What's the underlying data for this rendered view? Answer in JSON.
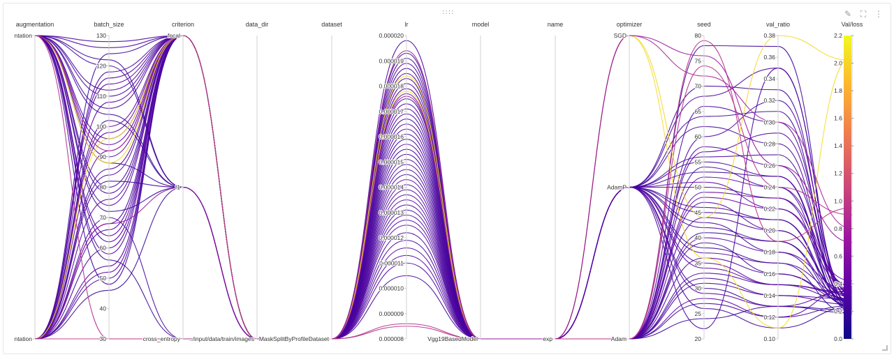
{
  "toolbar": {
    "edit_icon": "pencil-icon",
    "expand_icon": "fullscreen-icon",
    "menu_icon": "kebab-menu-icon"
  },
  "chart_data": {
    "type": "parallel-coordinates",
    "axes": [
      {
        "key": "augmentation",
        "label": "augmentation",
        "kind": "categorical",
        "ticks": [
          {
            "v": 1,
            "label": "ntation"
          },
          {
            "v": 0,
            "label": "ntation"
          }
        ]
      },
      {
        "key": "batch_size",
        "label": "batch_size",
        "kind": "numeric",
        "range": [
          30,
          130
        ],
        "ticks": [
          {
            "v": 130,
            "label": "130"
          },
          {
            "v": 120,
            "label": "120"
          },
          {
            "v": 110,
            "label": "110"
          },
          {
            "v": 100,
            "label": "100"
          },
          {
            "v": 90,
            "label": "90"
          },
          {
            "v": 80,
            "label": "80"
          },
          {
            "v": 70,
            "label": "70"
          },
          {
            "v": 60,
            "label": "60"
          },
          {
            "v": 50,
            "label": "50"
          },
          {
            "v": 40,
            "label": "40"
          },
          {
            "v": 30,
            "label": "30"
          }
        ]
      },
      {
        "key": "criterion",
        "label": "criterion",
        "kind": "categorical",
        "ticks": [
          {
            "v": 1,
            "label": "focal"
          },
          {
            "v": 0.5,
            "label": "f1"
          },
          {
            "v": 0,
            "label": "cross_entropy"
          }
        ]
      },
      {
        "key": "data_dir",
        "label": "data_dir",
        "kind": "categorical",
        "ticks": [
          {
            "v": 0,
            "label": "../input/data/train/images"
          }
        ]
      },
      {
        "key": "dataset",
        "label": "dataset",
        "kind": "categorical",
        "ticks": [
          {
            "v": 0,
            "label": "MaskSplitByProfileDataset"
          }
        ]
      },
      {
        "key": "lr",
        "label": "lr",
        "kind": "numeric",
        "range": [
          8e-06,
          2e-05
        ],
        "ticks": [
          {
            "v": 2e-05,
            "label": "0.000020"
          },
          {
            "v": 1.9e-05,
            "label": "0.000019"
          },
          {
            "v": 1.8e-05,
            "label": "0.000018"
          },
          {
            "v": 1.7e-05,
            "label": "0.000017"
          },
          {
            "v": 1.6e-05,
            "label": "0.000016"
          },
          {
            "v": 1.5e-05,
            "label": "0.000015"
          },
          {
            "v": 1.4e-05,
            "label": "0.000014"
          },
          {
            "v": 1.3e-05,
            "label": "0.000013"
          },
          {
            "v": 1.2e-05,
            "label": "0.000012"
          },
          {
            "v": 1.1e-05,
            "label": "0.000011"
          },
          {
            "v": 1e-05,
            "label": "0.000010"
          },
          {
            "v": 9e-06,
            "label": "0.000009"
          },
          {
            "v": 8e-06,
            "label": "0.000008"
          }
        ]
      },
      {
        "key": "model",
        "label": "model",
        "kind": "categorical",
        "ticks": [
          {
            "v": 0,
            "label": "Vgg19BasedModel"
          }
        ]
      },
      {
        "key": "name",
        "label": "name",
        "kind": "categorical",
        "ticks": [
          {
            "v": 0,
            "label": "exp"
          }
        ]
      },
      {
        "key": "optimizer",
        "label": "optimizer",
        "kind": "categorical",
        "ticks": [
          {
            "v": 1,
            "label": "SGD"
          },
          {
            "v": 0.5,
            "label": "AdamP"
          },
          {
            "v": 0,
            "label": "Adam"
          }
        ]
      },
      {
        "key": "seed",
        "label": "seed",
        "kind": "numeric",
        "range": [
          20,
          80
        ],
        "ticks": [
          {
            "v": 80,
            "label": "80"
          },
          {
            "v": 75,
            "label": "75"
          },
          {
            "v": 70,
            "label": "70"
          },
          {
            "v": 65,
            "label": "65"
          },
          {
            "v": 60,
            "label": "60"
          },
          {
            "v": 55,
            "label": "55"
          },
          {
            "v": 50,
            "label": "50"
          },
          {
            "v": 45,
            "label": "45"
          },
          {
            "v": 40,
            "label": "40"
          },
          {
            "v": 35,
            "label": "35"
          },
          {
            "v": 30,
            "label": "30"
          },
          {
            "v": 25,
            "label": "25"
          },
          {
            "v": 20,
            "label": "20"
          }
        ]
      },
      {
        "key": "val_ratio",
        "label": "val_ratio",
        "kind": "numeric",
        "range": [
          0.1,
          0.38
        ],
        "ticks": [
          {
            "v": 0.38,
            "label": "0.38"
          },
          {
            "v": 0.36,
            "label": "0.36"
          },
          {
            "v": 0.34,
            "label": "0.34"
          },
          {
            "v": 0.32,
            "label": "0.32"
          },
          {
            "v": 0.3,
            "label": "0.30"
          },
          {
            "v": 0.28,
            "label": "0.28"
          },
          {
            "v": 0.26,
            "label": "0.26"
          },
          {
            "v": 0.24,
            "label": "0.24"
          },
          {
            "v": 0.22,
            "label": "0.22"
          },
          {
            "v": 0.2,
            "label": "0.20"
          },
          {
            "v": 0.18,
            "label": "0.18"
          },
          {
            "v": 0.16,
            "label": "0.16"
          },
          {
            "v": 0.14,
            "label": "0.14"
          },
          {
            "v": 0.12,
            "label": "0.12"
          },
          {
            "v": 0.1,
            "label": "0.10"
          }
        ]
      },
      {
        "key": "val_loss",
        "label": "Val/loss",
        "kind": "numeric",
        "range": [
          0,
          2.2
        ],
        "ticks": [
          {
            "v": 2.2,
            "label": "2.2"
          },
          {
            "v": 2.0,
            "label": "2.0"
          },
          {
            "v": 1.8,
            "label": "1.8"
          },
          {
            "v": 1.6,
            "label": "1.6"
          },
          {
            "v": 1.4,
            "label": "1.4"
          },
          {
            "v": 1.2,
            "label": "1.2"
          },
          {
            "v": 1.0,
            "label": "1.0"
          },
          {
            "v": 0.8,
            "label": "0.8"
          },
          {
            "v": 0.6,
            "label": "0.6"
          },
          {
            "v": 0.4,
            "label": "0.4"
          },
          {
            "v": 0.2,
            "label": "0.2"
          },
          {
            "v": 0.0,
            "label": "0.0"
          }
        ]
      }
    ],
    "colorbar": {
      "range": [
        0,
        2.2
      ],
      "colors": [
        "#0d0887",
        "#5c01a6",
        "#9c179e",
        "#cc4778",
        "#ed7953",
        "#fdb42f",
        "#f0f921"
      ],
      "ticks": [
        {
          "v": 2.2,
          "label": "2.2"
        },
        {
          "v": 2.0,
          "label": "2.0"
        },
        {
          "v": 1.8,
          "label": "1.8"
        },
        {
          "v": 1.6,
          "label": "1.6"
        },
        {
          "v": 1.4,
          "label": "1.4"
        },
        {
          "v": 1.2,
          "label": "1.2"
        },
        {
          "v": 1.0,
          "label": "1.0"
        },
        {
          "v": 0.8,
          "label": "0.8"
        },
        {
          "v": 0.6,
          "label": "0.6"
        },
        {
          "v": 0.4,
          "label": "0.4"
        },
        {
          "v": 0.2,
          "label": "0.2"
        },
        {
          "v": 0.0,
          "label": "0.0"
        }
      ]
    },
    "runs": [
      {
        "augmentation": 1,
        "batch_size": 128,
        "criterion": 1,
        "lr": 1.98e-05,
        "optimizer": 0.5,
        "seed": 22,
        "val_ratio": 0.35,
        "val_loss": 0.28
      },
      {
        "augmentation": 0,
        "batch_size": 124,
        "criterion": 1,
        "lr": 1.93e-05,
        "optimizer": 0,
        "seed": 78,
        "val_ratio": 0.37,
        "val_loss": 0.22
      },
      {
        "augmentation": 1,
        "batch_size": 120,
        "criterion": 0.5,
        "lr": 1.91e-05,
        "optimizer": 0.5,
        "seed": 70,
        "val_ratio": 0.33,
        "val_loss": 0.24
      },
      {
        "augmentation": 0,
        "batch_size": 116,
        "criterion": 1,
        "lr": 1.89e-05,
        "optimizer": 0,
        "seed": 66,
        "val_ratio": 0.3,
        "val_loss": 0.3
      },
      {
        "augmentation": 1,
        "batch_size": 112,
        "criterion": 1,
        "lr": 1.87e-05,
        "optimizer": 0.5,
        "seed": 62,
        "val_ratio": 0.28,
        "val_loss": 0.26
      },
      {
        "augmentation": 0,
        "batch_size": 108,
        "criterion": 1,
        "lr": 1.85e-05,
        "optimizer": 0,
        "seed": 58,
        "val_ratio": 0.26,
        "val_loss": 0.34
      },
      {
        "augmentation": 1,
        "batch_size": 104,
        "criterion": 0.5,
        "lr": 1.83e-05,
        "optimizer": 0.5,
        "seed": 55,
        "val_ratio": 0.25,
        "val_loss": 0.2
      },
      {
        "augmentation": 0,
        "batch_size": 100,
        "criterion": 1,
        "lr": 1.81e-05,
        "optimizer": 0,
        "seed": 52,
        "val_ratio": 0.24,
        "val_loss": 0.38
      },
      {
        "augmentation": 1,
        "batch_size": 96,
        "criterion": 1,
        "lr": 1.79e-05,
        "optimizer": 0.5,
        "seed": 50,
        "val_ratio": 0.23,
        "val_loss": 0.24
      },
      {
        "augmentation": 0,
        "batch_size": 92,
        "criterion": 1,
        "lr": 1.77e-05,
        "optimizer": 0,
        "seed": 48,
        "val_ratio": 0.22,
        "val_loss": 0.42
      },
      {
        "augmentation": 1,
        "batch_size": 88,
        "criterion": 0.5,
        "lr": 1.75e-05,
        "optimizer": 0.5,
        "seed": 46,
        "val_ratio": 0.21,
        "val_loss": 0.22
      },
      {
        "augmentation": 0,
        "batch_size": 84,
        "criterion": 1,
        "lr": 1.73e-05,
        "optimizer": 0,
        "seed": 44,
        "val_ratio": 0.2,
        "val_loss": 0.31
      },
      {
        "augmentation": 1,
        "batch_size": 80,
        "criterion": 1,
        "lr": 1.71e-05,
        "optimizer": 0.5,
        "seed": 42,
        "val_ratio": 0.19,
        "val_loss": 0.27
      },
      {
        "augmentation": 0,
        "batch_size": 76,
        "criterion": 1,
        "lr": 1.69e-05,
        "optimizer": 0,
        "seed": 40,
        "val_ratio": 0.18,
        "val_loss": 0.35
      },
      {
        "augmentation": 1,
        "batch_size": 72,
        "criterion": 0.5,
        "lr": 1.67e-05,
        "optimizer": 0.5,
        "seed": 38,
        "val_ratio": 0.17,
        "val_loss": 0.18
      },
      {
        "augmentation": 0,
        "batch_size": 68,
        "criterion": 1,
        "lr": 1.65e-05,
        "optimizer": 0,
        "seed": 36,
        "val_ratio": 0.16,
        "val_loss": 0.29
      },
      {
        "augmentation": 1,
        "batch_size": 64,
        "criterion": 1,
        "lr": 1.63e-05,
        "optimizer": 0.5,
        "seed": 34,
        "val_ratio": 0.15,
        "val_loss": 0.33
      },
      {
        "augmentation": 0,
        "batch_size": 60,
        "criterion": 1,
        "lr": 1.61e-05,
        "optimizer": 0,
        "seed": 32,
        "val_ratio": 0.14,
        "val_loss": 0.25
      },
      {
        "augmentation": 1,
        "batch_size": 56,
        "criterion": 0,
        "lr": 1.59e-05,
        "optimizer": 0.5,
        "seed": 30,
        "val_ratio": 0.13,
        "val_loss": 0.21
      },
      {
        "augmentation": 0,
        "batch_size": 52,
        "criterion": 1,
        "lr": 1.57e-05,
        "optimizer": 0,
        "seed": 28,
        "val_ratio": 0.12,
        "val_loss": 0.37
      },
      {
        "augmentation": 1,
        "batch_size": 48,
        "criterion": 1,
        "lr": 1.55e-05,
        "optimizer": 0.5,
        "seed": 26,
        "val_ratio": 0.11,
        "val_loss": 0.23
      },
      {
        "augmentation": 0,
        "batch_size": 46,
        "criterion": 0.5,
        "lr": 1.53e-05,
        "optimizer": 0,
        "seed": 24,
        "val_ratio": 0.13,
        "val_loss": 0.19
      },
      {
        "augmentation": 1,
        "batch_size": 126,
        "criterion": 1,
        "lr": 1.51e-05,
        "optimizer": 0.5,
        "seed": 68,
        "val_ratio": 0.35,
        "val_loss": 0.28
      },
      {
        "augmentation": 0,
        "batch_size": 118,
        "criterion": 1,
        "lr": 1.49e-05,
        "optimizer": 0,
        "seed": 60,
        "val_ratio": 0.32,
        "val_loss": 0.32
      },
      {
        "augmentation": 1,
        "batch_size": 110,
        "criterion": 1,
        "lr": 1.47e-05,
        "optimizer": 0.5,
        "seed": 56,
        "val_ratio": 0.27,
        "val_loss": 0.26
      },
      {
        "augmentation": 0,
        "batch_size": 102,
        "criterion": 0.5,
        "lr": 1.45e-05,
        "optimizer": 0,
        "seed": 54,
        "val_ratio": 0.24,
        "val_loss": 0.22
      },
      {
        "augmentation": 1,
        "batch_size": 94,
        "criterion": 1,
        "lr": 1.43e-05,
        "optimizer": 0.5,
        "seed": 51,
        "val_ratio": 0.22,
        "val_loss": 0.36
      },
      {
        "augmentation": 0,
        "batch_size": 86,
        "criterion": 1,
        "lr": 1.41e-05,
        "optimizer": 0,
        "seed": 47,
        "val_ratio": 0.2,
        "val_loss": 0.3
      },
      {
        "augmentation": 1,
        "batch_size": 78,
        "criterion": 1,
        "lr": 1.39e-05,
        "optimizer": 0.5,
        "seed": 43,
        "val_ratio": 0.18,
        "val_loss": 0.24
      },
      {
        "augmentation": 0,
        "batch_size": 70,
        "criterion": 0,
        "lr": 1.37e-05,
        "optimizer": 0,
        "seed": 39,
        "val_ratio": 0.16,
        "val_loss": 0.27
      },
      {
        "augmentation": 1,
        "batch_size": 62,
        "criterion": 1,
        "lr": 1.35e-05,
        "optimizer": 0.5,
        "seed": 35,
        "val_ratio": 0.15,
        "val_loss": 0.34
      },
      {
        "augmentation": 0,
        "batch_size": 54,
        "criterion": 1,
        "lr": 1.33e-05,
        "optimizer": 0,
        "seed": 31,
        "val_ratio": 0.14,
        "val_loss": 0.29
      },
      {
        "augmentation": 1,
        "batch_size": 122,
        "criterion": 0.5,
        "lr": 1.31e-05,
        "optimizer": 0.5,
        "seed": 64,
        "val_ratio": 0.31,
        "val_loss": 0.21
      },
      {
        "augmentation": 0,
        "batch_size": 114,
        "criterion": 1,
        "lr": 1.29e-05,
        "optimizer": 0,
        "seed": 57,
        "val_ratio": 0.29,
        "val_loss": 0.33
      },
      {
        "augmentation": 1,
        "batch_size": 106,
        "criterion": 1,
        "lr": 1.27e-05,
        "optimizer": 0.5,
        "seed": 53,
        "val_ratio": 0.25,
        "val_loss": 0.25
      },
      {
        "augmentation": 0,
        "batch_size": 98,
        "criterion": 1,
        "lr": 1.25e-05,
        "optimizer": 0,
        "seed": 49,
        "val_ratio": 0.23,
        "val_loss": 0.38
      },
      {
        "augmentation": 1,
        "batch_size": 90,
        "criterion": 1,
        "lr": 1.22e-05,
        "optimizer": 0.5,
        "seed": 45,
        "val_ratio": 0.21,
        "val_loss": 0.26
      },
      {
        "augmentation": 0,
        "batch_size": 82,
        "criterion": 0.5,
        "lr": 1.19e-05,
        "optimizer": 0,
        "seed": 41,
        "val_ratio": 0.19,
        "val_loss": 0.23
      },
      {
        "augmentation": 1,
        "batch_size": 74,
        "criterion": 1,
        "lr": 1.16e-05,
        "optimizer": 0.5,
        "seed": 37,
        "val_ratio": 0.17,
        "val_loss": 0.31
      },
      {
        "augmentation": 0,
        "batch_size": 66,
        "criterion": 1,
        "lr": 1.13e-05,
        "optimizer": 0,
        "seed": 33,
        "val_ratio": 0.15,
        "val_loss": 0.28
      },
      {
        "augmentation": 1,
        "batch_size": 58,
        "criterion": 1,
        "lr": 1.1e-05,
        "optimizer": 0.5,
        "seed": 29,
        "val_ratio": 0.13,
        "val_loss": 0.35
      },
      {
        "augmentation": 0,
        "batch_size": 50,
        "criterion": 1,
        "lr": 1.05e-05,
        "optimizer": 0,
        "seed": 27,
        "val_ratio": 0.12,
        "val_loss": 0.24
      },
      {
        "augmentation": 1,
        "batch_size": 30,
        "criterion": 0,
        "lr": 8.6e-06,
        "optimizer": 0,
        "seed": 74,
        "val_ratio": 0.24,
        "val_loss": 0.9
      },
      {
        "augmentation": 0,
        "batch_size": 30,
        "criterion": 0,
        "lr": 8.5e-06,
        "optimizer": 0,
        "seed": 79,
        "val_ratio": 0.19,
        "val_loss": 0.95
      },
      {
        "augmentation": 0,
        "batch_size": 96,
        "criterion": 1,
        "lr": 1.84e-05,
        "optimizer": 1,
        "seed": 36,
        "val_ratio": 0.11,
        "val_loss": 2.05
      },
      {
        "augmentation": 1,
        "batch_size": 88,
        "criterion": 1,
        "lr": 1.78e-05,
        "optimizer": 1,
        "seed": 44,
        "val_ratio": 0.38,
        "val_loss": 2.02
      },
      {
        "augmentation": 1,
        "batch_size": 92,
        "criterion": 1,
        "lr": 1.94e-05,
        "optimizer": 1,
        "seed": 72,
        "val_ratio": 0.3,
        "val_loss": 0.8
      },
      {
        "augmentation": 0,
        "batch_size": 68,
        "criterion": 0.5,
        "lr": 1.76e-05,
        "optimizer": 1,
        "seed": 76,
        "val_ratio": 0.26,
        "val_loss": 0.7
      }
    ]
  }
}
